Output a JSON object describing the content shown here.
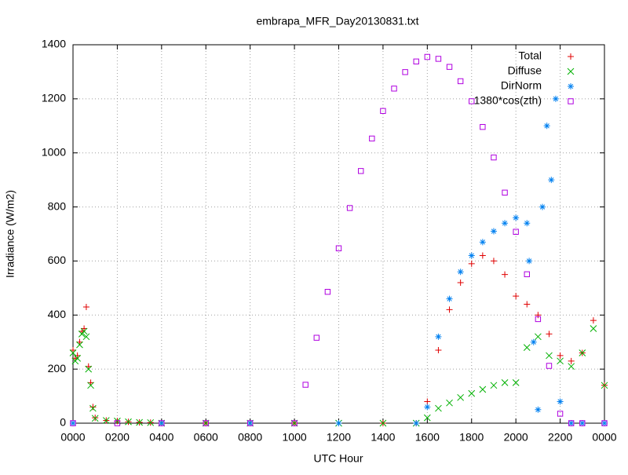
{
  "chart_data": {
    "type": "scatter",
    "title": "embrapa_MFR_Day20130831.txt",
    "x_label": "UTC Hour",
    "y_label": "Irradiance (W/m2)",
    "xlim": [
      0,
      24
    ],
    "ylim": [
      0,
      1400
    ],
    "xticks": [
      {
        "value": 0,
        "label": "0000"
      },
      {
        "value": 2,
        "label": "0200"
      },
      {
        "value": 4,
        "label": "0400"
      },
      {
        "value": 6,
        "label": "0600"
      },
      {
        "value": 8,
        "label": "0800"
      },
      {
        "value": 10,
        "label": "1000"
      },
      {
        "value": 12,
        "label": "1200"
      },
      {
        "value": 14,
        "label": "1400"
      },
      {
        "value": 16,
        "label": "1600"
      },
      {
        "value": 18,
        "label": "1800"
      },
      {
        "value": 20,
        "label": "2000"
      },
      {
        "value": 22,
        "label": "2200"
      },
      {
        "value": 24,
        "label": "0000"
      }
    ],
    "yticks": [
      0,
      200,
      400,
      600,
      800,
      1000,
      1200,
      1400
    ],
    "grid": true,
    "legend": "top-right",
    "series": [
      {
        "name": "Total",
        "color": "#e00000",
        "marker": "plus",
        "x": [
          0,
          0.1,
          0.2,
          0.3,
          0.4,
          0.5,
          0.6,
          0.7,
          0.8,
          0.9,
          1.0,
          1.5,
          2,
          2.5,
          3,
          3.5,
          4,
          6,
          8,
          10,
          12,
          14,
          15.5,
          16,
          16.5,
          17,
          17.5,
          18,
          18.5,
          19,
          19.5,
          20,
          20.5,
          21,
          21.5,
          22,
          22.5,
          23,
          23.5,
          24
        ],
        "values": [
          270,
          240,
          250,
          300,
          340,
          350,
          430,
          210,
          150,
          60,
          20,
          10,
          8,
          5,
          3,
          2,
          0,
          0,
          0,
          0,
          0,
          0,
          0,
          80,
          270,
          420,
          520,
          590,
          620,
          600,
          550,
          470,
          440,
          400,
          330,
          250,
          230,
          260,
          380,
          140
        ]
      },
      {
        "name": "Diffuse",
        "color": "#00b000",
        "marker": "cross",
        "x": [
          0,
          0.1,
          0.2,
          0.3,
          0.4,
          0.5,
          0.6,
          0.7,
          0.8,
          0.9,
          1.0,
          1.5,
          2,
          2.5,
          3,
          3.5,
          4,
          6,
          8,
          10,
          12,
          14,
          15.5,
          16,
          16.5,
          17,
          17.5,
          18,
          18.5,
          19,
          19.5,
          20,
          20.5,
          21,
          21.5,
          22,
          22.5,
          23,
          23.5,
          24
        ],
        "values": [
          260,
          230,
          240,
          290,
          330,
          340,
          320,
          200,
          140,
          55,
          18,
          10,
          8,
          5,
          3,
          2,
          0,
          0,
          0,
          0,
          0,
          0,
          0,
          20,
          55,
          75,
          95,
          110,
          125,
          140,
          150,
          150,
          280,
          320,
          250,
          230,
          210,
          260,
          350,
          140
        ]
      },
      {
        "name": "DirNorm",
        "color": "#0080f0",
        "marker": "star",
        "x": [
          0,
          4,
          8,
          12,
          15.5,
          16,
          16.5,
          17,
          17.5,
          18,
          18.5,
          19,
          19.5,
          20,
          20.5,
          20.6,
          20.8,
          21,
          21.2,
          21.4,
          21.6,
          21.8,
          22,
          22.5,
          23,
          24
        ],
        "values": [
          0,
          0,
          0,
          0,
          0,
          60,
          320,
          460,
          560,
          620,
          670,
          710,
          740,
          760,
          740,
          600,
          300,
          50,
          800,
          1100,
          900,
          1200,
          80,
          0,
          0,
          0
        ]
      },
      {
        "name": "1380*cos(zth)",
        "color": "#b000e0",
        "marker": "square",
        "x": [
          0,
          2,
          4,
          6,
          8,
          10,
          10.5,
          11,
          11.5,
          12,
          12.5,
          13,
          13.5,
          14,
          14.5,
          15,
          15.5,
          16,
          16.5,
          17,
          17.5,
          18,
          18.5,
          19,
          19.5,
          20,
          20.5,
          21,
          21.5,
          22,
          22.5,
          23,
          24
        ],
        "values": [
          0,
          0,
          0,
          0,
          0,
          0,
          142,
          316,
          486,
          647,
          796,
          933,
          1053,
          1155,
          1238,
          1299,
          1338,
          1355,
          1348,
          1318,
          1265,
          1191,
          1096,
          983,
          853,
          708,
          551,
          385,
          212,
          35,
          0,
          0,
          0
        ]
      }
    ]
  }
}
